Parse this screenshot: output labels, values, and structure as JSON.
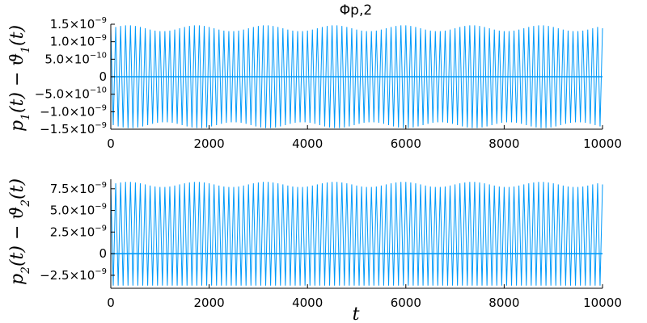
{
  "chart_data": [
    {
      "type": "line",
      "title": "Φp,2",
      "xlabel": "",
      "ylabel": "p_1(t) − ϑ_1(t)",
      "xlim": [
        0,
        10000
      ],
      "ylim": [
        -1.5e-09,
        1.5e-09
      ],
      "xticks": [
        0,
        2000,
        4000,
        6000,
        8000,
        10000
      ],
      "xtick_labels": [
        "0",
        "2000",
        "4000",
        "6000",
        "8000",
        "10000"
      ],
      "yticks": [
        1.5e-09,
        1e-09,
        5e-10,
        0,
        -5e-10,
        -1e-09,
        -1.5e-09
      ],
      "ytick_labels": [
        {
          "base": "1.5×10",
          "exp": "−9"
        },
        {
          "base": "1.0×10",
          "exp": "−9"
        },
        {
          "base": "5.0×10",
          "exp": "−10"
        },
        {
          "base": "0",
          "exp": ""
        },
        {
          "base": "−5.0×10",
          "exp": "−10"
        },
        {
          "base": "−1.0×10",
          "exp": "−9"
        },
        {
          "base": "−1.5×10",
          "exp": "−9"
        }
      ],
      "grid": false,
      "series_color": "#009AFA",
      "oscillation": {
        "cycles": 100,
        "envelope_max": 1.47e-09,
        "envelope_min": 1.3e-09,
        "symmetric": true,
        "beat_cycles": 14
      }
    },
    {
      "type": "line",
      "title": "",
      "xlabel": "t",
      "ylabel": "p_2(t) − ϑ_2(t)",
      "xlim": [
        0,
        10000
      ],
      "ylim": [
        -4e-09,
        8.6e-09
      ],
      "xticks": [
        0,
        2000,
        4000,
        6000,
        8000,
        10000
      ],
      "xtick_labels": [
        "0",
        "2000",
        "4000",
        "6000",
        "8000",
        "10000"
      ],
      "yticks": [
        7.5e-09,
        5e-09,
        2.5e-09,
        0,
        -2.5e-09
      ],
      "ytick_labels": [
        {
          "base": "7.5×10",
          "exp": "−9"
        },
        {
          "base": "5.0×10",
          "exp": "−9"
        },
        {
          "base": "2.5×10",
          "exp": "−9"
        },
        {
          "base": "0",
          "exp": ""
        },
        {
          "base": "−2.5×10",
          "exp": "−9"
        }
      ],
      "grid": false,
      "series_color": "#009AFA",
      "oscillation": {
        "cycles": 100,
        "envelope_max": 8.3e-09,
        "envelope_min": 7.7e-09,
        "low_value": -3.7e-09,
        "beat_cycles": 14
      }
    }
  ]
}
